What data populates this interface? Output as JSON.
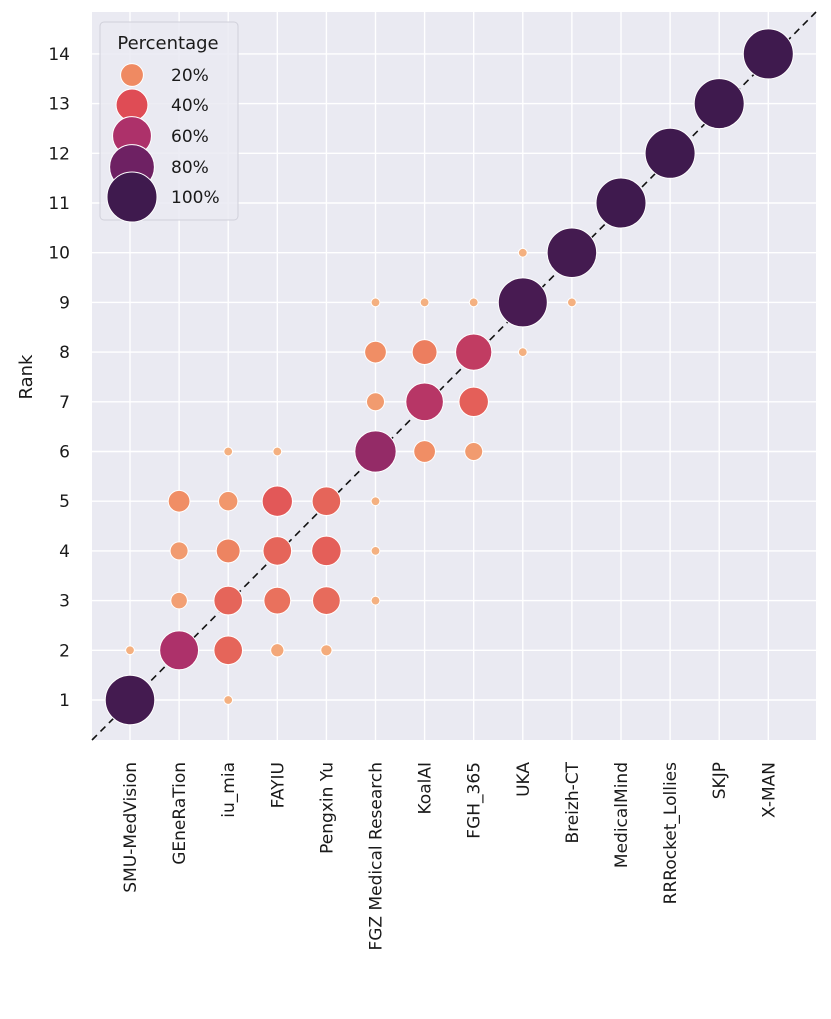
{
  "chart_data": {
    "type": "scatter",
    "title": "",
    "xlabel": "",
    "ylabel": "Rank",
    "categories": [
      "SMU-MedVision",
      "GEneRaTion",
      "iu_mia",
      "FAYIU",
      "Pengxin Yu",
      "FGZ Medical Research",
      "KoalAI",
      "FGH_365",
      "UKA",
      "Breizh-CT",
      "MedicalMind",
      "RRRocket_Lollies",
      "SKJP",
      "X-MAN"
    ],
    "yticks": [
      1,
      2,
      3,
      4,
      5,
      6,
      7,
      8,
      9,
      10,
      11,
      12,
      13,
      14
    ],
    "ylim": [
      0.2,
      14.8
    ],
    "grid": true,
    "diagonal": "dashed y = x reference line",
    "legend": {
      "title": "Percentage",
      "placement": "top-left",
      "entries": [
        {
          "label": "20%",
          "value": 20
        },
        {
          "label": "40%",
          "value": 40
        },
        {
          "label": "60%",
          "value": 60
        },
        {
          "label": "80%",
          "value": 80
        },
        {
          "label": "100%",
          "value": 100
        }
      ]
    },
    "points": [
      {
        "team": "SMU-MedVision",
        "rank": 1,
        "pct": 98
      },
      {
        "team": "SMU-MedVision",
        "rank": 2,
        "pct": 2
      },
      {
        "team": "GEneRaTion",
        "rank": 2,
        "pct": 60
      },
      {
        "team": "GEneRaTion",
        "rank": 3,
        "pct": 10
      },
      {
        "team": "GEneRaTion",
        "rank": 4,
        "pct": 12
      },
      {
        "team": "GEneRaTion",
        "rank": 5,
        "pct": 18
      },
      {
        "team": "iu_mia",
        "rank": 1,
        "pct": 2
      },
      {
        "team": "iu_mia",
        "rank": 2,
        "pct": 32
      },
      {
        "team": "iu_mia",
        "rank": 3,
        "pct": 32
      },
      {
        "team": "iu_mia",
        "rank": 4,
        "pct": 22
      },
      {
        "team": "iu_mia",
        "rank": 5,
        "pct": 14
      },
      {
        "team": "iu_mia",
        "rank": 6,
        "pct": 2
      },
      {
        "team": "FAYIU",
        "rank": 2,
        "pct": 6
      },
      {
        "team": "FAYIU",
        "rank": 3,
        "pct": 28
      },
      {
        "team": "FAYIU",
        "rank": 4,
        "pct": 32
      },
      {
        "team": "FAYIU",
        "rank": 5,
        "pct": 36
      },
      {
        "team": "FAYIU",
        "rank": 6,
        "pct": 2
      },
      {
        "team": "Pengxin Yu",
        "rank": 2,
        "pct": 4
      },
      {
        "team": "Pengxin Yu",
        "rank": 3,
        "pct": 30
      },
      {
        "team": "Pengxin Yu",
        "rank": 4,
        "pct": 34
      },
      {
        "team": "Pengxin Yu",
        "rank": 5,
        "pct": 32
      },
      {
        "team": "FGZ Medical Research",
        "rank": 3,
        "pct": 2
      },
      {
        "team": "FGZ Medical Research",
        "rank": 4,
        "pct": 2
      },
      {
        "team": "FGZ Medical Research",
        "rank": 5,
        "pct": 2
      },
      {
        "team": "FGZ Medical Research",
        "rank": 6,
        "pct": 68
      },
      {
        "team": "FGZ Medical Research",
        "rank": 7,
        "pct": 12
      },
      {
        "team": "FGZ Medical Research",
        "rank": 8,
        "pct": 18
      },
      {
        "team": "FGZ Medical Research",
        "rank": 9,
        "pct": 2
      },
      {
        "team": "KoalAI",
        "rank": 6,
        "pct": 18
      },
      {
        "team": "KoalAI",
        "rank": 7,
        "pct": 56
      },
      {
        "team": "KoalAI",
        "rank": 8,
        "pct": 24
      },
      {
        "team": "KoalAI",
        "rank": 9,
        "pct": 2
      },
      {
        "team": "FGH_365",
        "rank": 6,
        "pct": 12
      },
      {
        "team": "FGH_365",
        "rank": 7,
        "pct": 34
      },
      {
        "team": "FGH_365",
        "rank": 8,
        "pct": 52
      },
      {
        "team": "FGH_365",
        "rank": 9,
        "pct": 2
      },
      {
        "team": "UKA",
        "rank": 8,
        "pct": 2
      },
      {
        "team": "UKA",
        "rank": 9,
        "pct": 96
      },
      {
        "team": "UKA",
        "rank": 10,
        "pct": 2
      },
      {
        "team": "Breizh-CT",
        "rank": 9,
        "pct": 2
      },
      {
        "team": "Breizh-CT",
        "rank": 10,
        "pct": 98
      },
      {
        "team": "MedicalMind",
        "rank": 11,
        "pct": 100
      },
      {
        "team": "RRRocket_Lollies",
        "rank": 12,
        "pct": 100
      },
      {
        "team": "SKJP",
        "rank": 13,
        "pct": 100
      },
      {
        "team": "X-MAN",
        "rank": 14,
        "pct": 100
      }
    ]
  },
  "colors": {
    "plot_background": "#eaeaf2",
    "grid": "#ffffff",
    "diagonal": "#111111",
    "palette_low": "#f29a6e",
    "palette_mid": "#de4d55",
    "palette_high": "#3f1a4e"
  }
}
